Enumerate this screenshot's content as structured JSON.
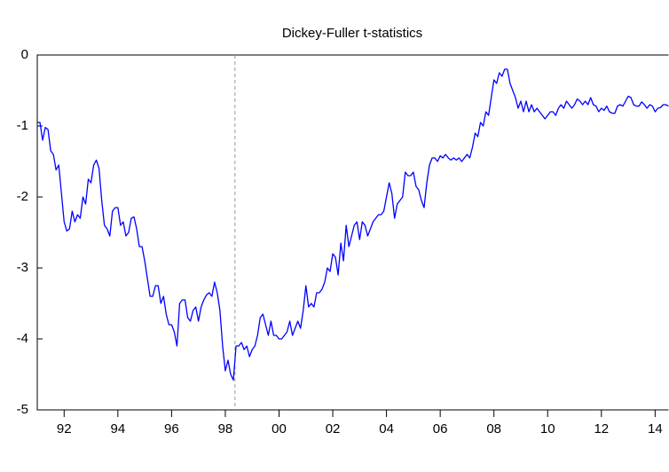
{
  "chart_data": {
    "type": "line",
    "title": "Dickey-Fuller t-statistics",
    "x": [
      1991.5,
      1991.6,
      1991.7,
      1991.8,
      1991.9,
      1992.0,
      1992.1,
      1992.2,
      1992.3,
      1992.4,
      1992.5,
      1992.6,
      1992.7,
      1992.8,
      1992.9,
      1993.0,
      1993.1,
      1993.2,
      1993.3,
      1993.4,
      1993.5,
      1993.6,
      1993.7,
      1993.8,
      1993.9,
      1994.0,
      1994.1,
      1994.2,
      1994.3,
      1994.4,
      1994.5,
      1994.6,
      1994.7,
      1994.8,
      1994.9,
      1995.0,
      1995.1,
      1995.2,
      1995.3,
      1995.4,
      1995.5,
      1995.6,
      1995.7,
      1995.8,
      1995.9,
      1996.0,
      1996.1,
      1996.2,
      1996.3,
      1996.4,
      1996.5,
      1996.6,
      1996.7,
      1996.8,
      1996.9,
      1997.0,
      1997.1,
      1997.2,
      1997.3,
      1997.4,
      1997.5,
      1997.6,
      1997.7,
      1997.8,
      1997.9,
      1998.0,
      1998.1,
      1998.2,
      1998.3,
      1998.4,
      1998.5,
      1998.6,
      1998.7,
      1998.8,
      1998.9,
      1999.0,
      1999.1,
      1999.2,
      1999.3,
      1999.4,
      1999.5,
      1999.6,
      1999.7,
      1999.8,
      1999.9,
      2000.0,
      2000.1,
      2000.2,
      2000.3,
      2000.4,
      2000.5,
      2000.6,
      2000.7,
      2000.8,
      2000.9,
      2001.0,
      2001.1,
      2001.2,
      2001.3,
      2001.4,
      2001.5,
      2001.6,
      2001.7,
      2001.8,
      2001.9,
      2002.0,
      2002.1,
      2002.2,
      2002.3,
      2002.4,
      2002.5,
      2002.6,
      2002.7,
      2002.8,
      2002.9,
      2003.0,
      2003.1,
      2003.2,
      2003.3,
      2003.4,
      2003.5,
      2003.6,
      2003.7,
      2003.8,
      2003.9,
      2004.0,
      2004.1,
      2004.2,
      2004.3,
      2004.4,
      2004.5,
      2004.6,
      2004.7,
      2004.8,
      2004.9,
      2005.0,
      2005.1,
      2005.2,
      2005.3,
      2005.4,
      2005.5,
      2005.6,
      2005.7,
      2005.8,
      2005.9,
      2006.0,
      2006.1,
      2006.2,
      2006.3,
      2006.4,
      2006.5,
      2006.6,
      2006.7,
      2006.8,
      2006.9,
      2007.0,
      2007.1,
      2007.2,
      2007.3,
      2007.4,
      2007.5,
      2007.6,
      2007.7,
      2007.8,
      2007.9,
      2008.0,
      2008.1,
      2008.2,
      2008.3,
      2008.4,
      2008.5,
      2008.6,
      2008.7,
      2008.8,
      2008.9,
      2009.0,
      2009.1,
      2009.2,
      2009.3,
      2009.4,
      2009.5,
      2009.6,
      2009.7,
      2009.8,
      2009.9,
      2010.0,
      2010.1,
      2010.2,
      2010.3,
      2010.4,
      2010.5,
      2010.6,
      2010.7,
      2010.8,
      2010.9,
      2011.0,
      2011.1,
      2011.2,
      2011.3,
      2011.4,
      2011.5,
      2011.6,
      2011.7,
      2011.8,
      2011.9,
      2012.0,
      2012.1,
      2012.2,
      2012.3,
      2012.4,
      2012.5,
      2012.6,
      2012.7,
      2012.8,
      2012.9,
      2013.0,
      2013.1,
      2013.2,
      2013.3,
      2013.4,
      2013.5,
      2013.6,
      2013.7,
      2013.8,
      2013.9,
      2014.0,
      2014.1,
      2014.2,
      2014.3,
      2014.4,
      2014.5,
      2014.6,
      2014.7,
      2014.8,
      2014.9,
      2015.0
    ],
    "series": [
      {
        "color": "#0000ff",
        "values": [
          -0.95,
          -0.95,
          -1.2,
          -1.02,
          -1.05,
          -1.35,
          -1.4,
          -1.62,
          -1.55,
          -1.95,
          -2.35,
          -2.48,
          -2.45,
          -2.2,
          -2.35,
          -2.25,
          -2.3,
          -2.0,
          -2.1,
          -1.75,
          -1.8,
          -1.55,
          -1.48,
          -1.6,
          -2.05,
          -2.4,
          -2.45,
          -2.55,
          -2.2,
          -2.15,
          -2.15,
          -2.4,
          -2.35,
          -2.55,
          -2.5,
          -2.3,
          -2.28,
          -2.45,
          -2.7,
          -2.7,
          -2.9,
          -3.15,
          -3.4,
          -3.4,
          -3.25,
          -3.25,
          -3.5,
          -3.4,
          -3.65,
          -3.8,
          -3.8,
          -3.9,
          -4.1,
          -3.5,
          -3.45,
          -3.45,
          -3.7,
          -3.75,
          -3.6,
          -3.55,
          -3.75,
          -3.55,
          -3.45,
          -3.38,
          -3.35,
          -3.4,
          -3.2,
          -3.35,
          -3.6,
          -4.1,
          -4.45,
          -4.3,
          -4.5,
          -4.58,
          -4.1,
          -4.1,
          -4.05,
          -4.15,
          -4.1,
          -4.25,
          -4.15,
          -4.1,
          -3.95,
          -3.7,
          -3.65,
          -3.8,
          -3.95,
          -3.75,
          -3.95,
          -3.95,
          -4.0,
          -4.0,
          -3.95,
          -3.9,
          -3.75,
          -3.95,
          -3.85,
          -3.75,
          -3.85,
          -3.6,
          -3.25,
          -3.55,
          -3.5,
          -3.55,
          -3.35,
          -3.35,
          -3.3,
          -3.2,
          -3.0,
          -3.05,
          -2.8,
          -2.85,
          -3.1,
          -2.65,
          -2.9,
          -2.4,
          -2.7,
          -2.55,
          -2.4,
          -2.35,
          -2.6,
          -2.35,
          -2.4,
          -2.55,
          -2.45,
          -2.35,
          -2.3,
          -2.25,
          -2.25,
          -2.2,
          -2.0,
          -1.8,
          -1.95,
          -2.3,
          -2.1,
          -2.05,
          -2.0,
          -1.65,
          -1.7,
          -1.7,
          -1.65,
          -1.85,
          -1.9,
          -2.05,
          -2.15,
          -1.8,
          -1.55,
          -1.45,
          -1.45,
          -1.5,
          -1.42,
          -1.45,
          -1.4,
          -1.45,
          -1.48,
          -1.45,
          -1.48,
          -1.45,
          -1.5,
          -1.45,
          -1.4,
          -1.45,
          -1.3,
          -1.1,
          -1.15,
          -0.95,
          -1.0,
          -0.8,
          -0.85,
          -0.6,
          -0.35,
          -0.4,
          -0.25,
          -0.3,
          -0.2,
          -0.2,
          -0.4,
          -0.5,
          -0.6,
          -0.75,
          -0.65,
          -0.8,
          -0.65,
          -0.8,
          -0.7,
          -0.8,
          -0.75,
          -0.8,
          -0.85,
          -0.9,
          -0.85,
          -0.8,
          -0.8,
          -0.85,
          -0.75,
          -0.7,
          -0.75,
          -0.65,
          -0.7,
          -0.75,
          -0.7,
          -0.62,
          -0.65,
          -0.7,
          -0.65,
          -0.7,
          -0.6,
          -0.7,
          -0.72,
          -0.8,
          -0.75,
          -0.78,
          -0.72,
          -0.8,
          -0.82,
          -0.82,
          -0.72,
          -0.7,
          -0.72,
          -0.65,
          -0.58,
          -0.6,
          -0.7,
          -0.72,
          -0.72,
          -0.66,
          -0.7,
          -0.75,
          -0.7,
          -0.72,
          -0.8,
          -0.75,
          -0.74,
          -0.7,
          -0.7,
          -0.72
        ]
      }
    ],
    "xlim": [
      1991.5,
      2015.0
    ],
    "xticks": [
      {
        "value": 1992.5,
        "label": "92"
      },
      {
        "value": 1994.5,
        "label": "94"
      },
      {
        "value": 1996.5,
        "label": "96"
      },
      {
        "value": 1998.5,
        "label": "98"
      },
      {
        "value": 2000.5,
        "label": "00"
      },
      {
        "value": 2002.5,
        "label": "02"
      },
      {
        "value": 2004.5,
        "label": "04"
      },
      {
        "value": 2006.5,
        "label": "06"
      },
      {
        "value": 2008.5,
        "label": "08"
      },
      {
        "value": 2010.5,
        "label": "10"
      },
      {
        "value": 2012.5,
        "label": "12"
      },
      {
        "value": 2014.5,
        "label": "14"
      }
    ],
    "ylim": [
      -5,
      0
    ],
    "yticks": [
      -5,
      -4,
      -3,
      -2,
      -1,
      0
    ],
    "vline": 1998.86,
    "grid": false
  }
}
